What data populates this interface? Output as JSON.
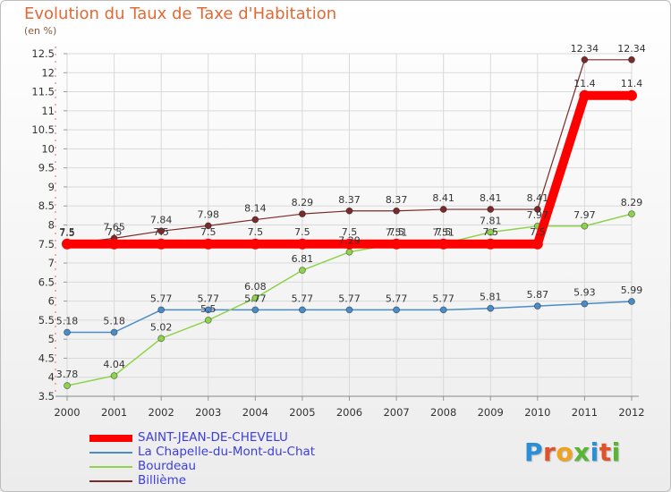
{
  "header": {
    "title": "Evolution du Taux de Taxe d'Habitation",
    "subtitle": "(en %)"
  },
  "logo": {
    "text": "Proxiti",
    "letters": [
      "P",
      "r",
      "o",
      "x",
      "i",
      "t",
      "i"
    ],
    "colors": [
      "#2a8fd6",
      "#e0532a",
      "#f0a21e",
      "#5ab535",
      "#2a8fd6",
      "#e0532a",
      "#5ab535"
    ]
  },
  "chart_data": {
    "type": "line",
    "title": "Evolution du Taux de Taxe d'Habitation",
    "ylabel": "(en %)",
    "xlabel": "",
    "ylim": [
      3.5,
      12.5
    ],
    "yticks": [
      "3.5",
      "4",
      "4.5",
      "5",
      "5.5",
      "6",
      "6.5",
      "7",
      "7.5",
      "8",
      "8.5",
      "9",
      "9.5",
      "10",
      "10.5",
      "11",
      "11.5",
      "12",
      "12.5"
    ],
    "grid": true,
    "legend_position": "bottom-left",
    "x": [
      "2000",
      "2001",
      "2002",
      "2003",
      "2004",
      "2005",
      "2006",
      "2007",
      "2008",
      "2009",
      "2010",
      "2011",
      "2012"
    ],
    "series": [
      {
        "name": "Billième",
        "color": "#7a2a2a",
        "values": [
          7.5,
          7.65,
          7.84,
          7.98,
          8.14,
          8.29,
          8.37,
          8.37,
          8.41,
          8.41,
          8.41,
          12.34,
          12.34
        ],
        "labels": [
          "7.5",
          "7.65",
          "7.84",
          "7.98",
          "8.14",
          "8.29",
          "8.37",
          "8.37",
          "8.41",
          "8.41",
          "8.41",
          "12.34",
          "12.34"
        ]
      },
      {
        "name": "La Chapelle-du-Mont-du-Chat",
        "color": "#4a8cc8",
        "values": [
          5.18,
          5.18,
          5.77,
          5.77,
          5.77,
          5.77,
          5.77,
          5.77,
          5.77,
          5.81,
          5.87,
          5.93,
          5.99
        ],
        "labels": [
          "5.18",
          "5.18",
          "5.77",
          "5.77",
          "5.77",
          "5.77",
          "5.77",
          "5.77",
          "5.77",
          "5.81",
          "5.87",
          "5.93",
          "5.99"
        ]
      },
      {
        "name": "Bourdeau",
        "color": "#8fd24e",
        "values": [
          3.78,
          4.04,
          5.02,
          5.5,
          6.08,
          6.81,
          7.29,
          7.51,
          7.51,
          7.81,
          7.97,
          7.97,
          8.29
        ],
        "labels": [
          "3.78",
          "4.04",
          "5.02",
          "5.5",
          "6.08",
          "6.81",
          "7.29",
          "7.51",
          "7.51",
          "7.81",
          "7.97",
          "7.97",
          "8.29"
        ]
      },
      {
        "name": "SAINT-JEAN-DE-CHEVELU",
        "color": "#ff0000",
        "values": [
          7.5,
          7.5,
          7.5,
          7.5,
          7.5,
          7.5,
          7.5,
          7.5,
          7.5,
          7.5,
          7.5,
          11.4,
          11.4
        ],
        "labels": [
          "7.5",
          "7.5",
          "7.5",
          "7.5",
          "7.5",
          "7.5",
          "7.5",
          "7.5",
          "7.5",
          "7.5",
          "7.5",
          "11.4",
          "11.4"
        ]
      }
    ],
    "legend": [
      {
        "name": "SAINT-JEAN-DE-CHEVELU",
        "color": "#ff0000"
      },
      {
        "name": "La Chapelle-du-Mont-du-Chat",
        "color": "#4a8cc8"
      },
      {
        "name": "Bourdeau",
        "color": "#8fd24e"
      },
      {
        "name": "Billième",
        "color": "#7a2a2a"
      }
    ]
  }
}
